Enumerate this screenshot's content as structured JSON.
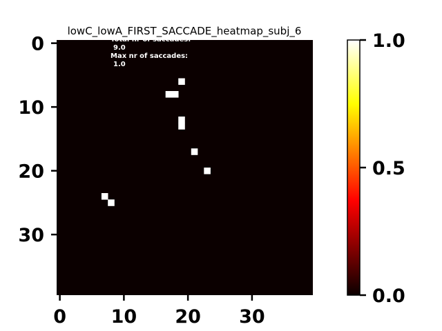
{
  "chart_data": {
    "type": "heatmap",
    "title": "lowC_lowA_FIRST_SACCADE_heatmap_subj_6",
    "grid_size": 40,
    "x_ticks": [
      0,
      10,
      20,
      30
    ],
    "y_ticks": [
      0,
      10,
      20,
      30
    ],
    "colormap": "hot",
    "background_value": 0.0,
    "cells": [
      {
        "x": 19,
        "y": 6,
        "value": 1.0
      },
      {
        "x": 17,
        "y": 8,
        "value": 1.0
      },
      {
        "x": 18,
        "y": 8,
        "value": 1.0
      },
      {
        "x": 19,
        "y": 12,
        "value": 1.0
      },
      {
        "x": 19,
        "y": 13,
        "value": 1.0
      },
      {
        "x": 21,
        "y": 17,
        "value": 1.0
      },
      {
        "x": 23,
        "y": 20,
        "value": 1.0
      },
      {
        "x": 7,
        "y": 24,
        "value": 1.0
      },
      {
        "x": 8,
        "y": 25,
        "value": 1.0
      }
    ],
    "annotation": {
      "line1": "Total nr of saccades:",
      "line2": "9.0",
      "line3": "Max nr of saccades:",
      "line4": "1.0"
    },
    "colorbar": {
      "ticks": [
        {
          "value": 1.0,
          "label": "1.0"
        },
        {
          "value": 0.5,
          "label": "0.5"
        },
        {
          "value": 0.0,
          "label": "0.0"
        }
      ],
      "range": [
        0.0,
        1.0
      ]
    },
    "colors": {
      "background": "#0b0000",
      "hot_cell": "#ffffff"
    }
  }
}
